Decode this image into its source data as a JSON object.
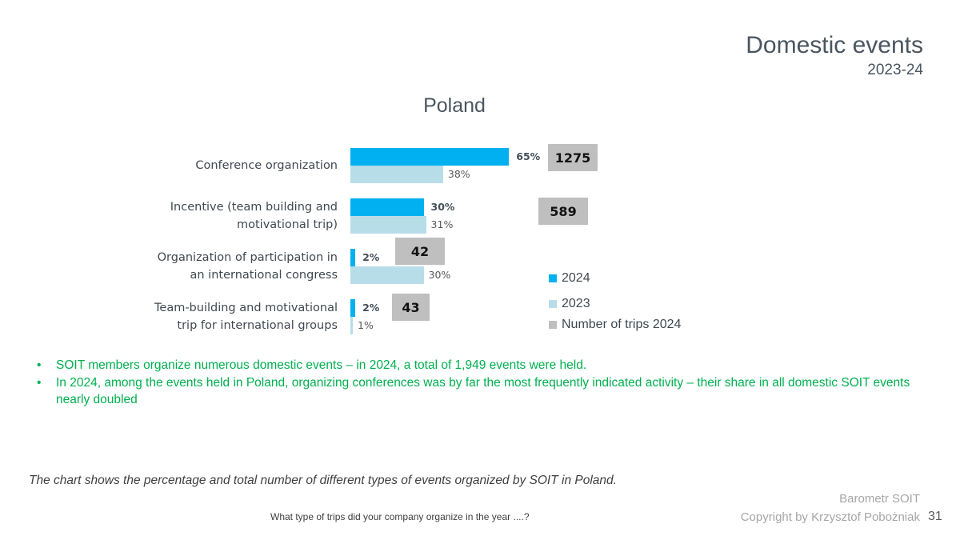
{
  "header": {
    "title": "Domestic events",
    "subtitle": "2023-24"
  },
  "chart_data": {
    "type": "bar",
    "orientation": "horizontal",
    "title": "Poland",
    "categories": [
      "Conference organization",
      "Incentive (team building and motivational trip)",
      "Organization of participation in an international congress",
      "Team-building and motivational trip for international groups"
    ],
    "category_lines": [
      [
        "Conference organization"
      ],
      [
        "Incentive (team building and",
        "motivational trip)"
      ],
      [
        "Organization of participation in",
        "an international congress"
      ],
      [
        "Team-building and motivational",
        "trip for international groups"
      ]
    ],
    "series": [
      {
        "name": "2024",
        "values": [
          65,
          30,
          2,
          2
        ],
        "labels": [
          "65%",
          "30%",
          "2%",
          "2%"
        ],
        "color": "#00b0f0"
      },
      {
        "name": "2023",
        "values": [
          38,
          31,
          30,
          1
        ],
        "labels": [
          "38%",
          "31%",
          "30%",
          "1%"
        ],
        "color": "#b7dde8"
      },
      {
        "name": "Number of trips 2024",
        "values": [
          1275,
          589,
          42,
          43
        ],
        "labels": [
          "1275",
          "589",
          "42",
          "43"
        ],
        "color": "#bfbfbf"
      }
    ],
    "legend_position": "right",
    "grid": false
  },
  "bullets": [
    "SOIT members organize numerous domestic events – in 2024, a total of 1,949 events were held.",
    "In 2024, among the events held in Poland, organizing conferences was by far the most frequently indicated activity – their share in all domestic SOIT events nearly doubled"
  ],
  "footer": {
    "note": "The chart shows the percentage and total number of different types of events organized by SOIT in Poland.",
    "question": "What type of trips did your company organize in the year ....?",
    "brand1": "Barometr SOIT",
    "brand2": "Copyright by Krzysztof Pobożniak",
    "page": "31"
  }
}
